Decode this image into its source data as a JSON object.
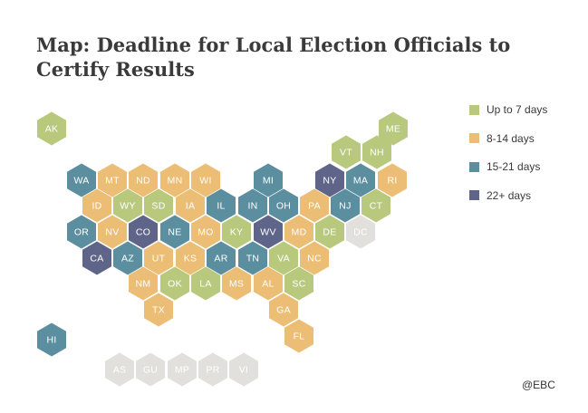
{
  "title": "Map: Deadline for Local Election Officials to Certify Results",
  "colors": {
    "up7": "#b8c97e",
    "d8_14": "#ecbd74",
    "d15_21": "#5b8f9f",
    "d22plus": "#5f6588",
    "na": "#e2e0dc"
  },
  "legend": [
    {
      "key": "up7",
      "label": "Up to 7 days"
    },
    {
      "key": "d8_14",
      "label": "8-14 days"
    },
    {
      "key": "d15_21",
      "label": "15-21 days"
    },
    {
      "key": "d22plus",
      "label": "22+ days"
    }
  ],
  "states": [
    {
      "abbr": "AK",
      "category": "up7"
    },
    {
      "abbr": "ME",
      "category": "up7"
    },
    {
      "abbr": "VT",
      "category": "up7"
    },
    {
      "abbr": "NH",
      "category": "up7"
    },
    {
      "abbr": "WA",
      "category": "d15_21"
    },
    {
      "abbr": "MT",
      "category": "d8_14"
    },
    {
      "abbr": "ND",
      "category": "d8_14"
    },
    {
      "abbr": "MN",
      "category": "d8_14"
    },
    {
      "abbr": "WI",
      "category": "d8_14"
    },
    {
      "abbr": "MI",
      "category": "d15_21"
    },
    {
      "abbr": "NY",
      "category": "d22plus"
    },
    {
      "abbr": "MA",
      "category": "d15_21"
    },
    {
      "abbr": "RI",
      "category": "d8_14"
    },
    {
      "abbr": "ID",
      "category": "d8_14"
    },
    {
      "abbr": "WY",
      "category": "up7"
    },
    {
      "abbr": "SD",
      "category": "up7"
    },
    {
      "abbr": "IA",
      "category": "d8_14"
    },
    {
      "abbr": "IL",
      "category": "d15_21"
    },
    {
      "abbr": "IN",
      "category": "d15_21"
    },
    {
      "abbr": "OH",
      "category": "d15_21"
    },
    {
      "abbr": "PA",
      "category": "d8_14"
    },
    {
      "abbr": "NJ",
      "category": "d15_21"
    },
    {
      "abbr": "CT",
      "category": "up7"
    },
    {
      "abbr": "OR",
      "category": "d15_21"
    },
    {
      "abbr": "NV",
      "category": "d8_14"
    },
    {
      "abbr": "CO",
      "category": "d22plus"
    },
    {
      "abbr": "NE",
      "category": "d15_21"
    },
    {
      "abbr": "MO",
      "category": "d8_14"
    },
    {
      "abbr": "KY",
      "category": "up7"
    },
    {
      "abbr": "WV",
      "category": "d22plus"
    },
    {
      "abbr": "MD",
      "category": "d8_14"
    },
    {
      "abbr": "DE",
      "category": "up7"
    },
    {
      "abbr": "DC",
      "category": "na"
    },
    {
      "abbr": "CA",
      "category": "d22plus"
    },
    {
      "abbr": "AZ",
      "category": "d15_21"
    },
    {
      "abbr": "UT",
      "category": "d8_14"
    },
    {
      "abbr": "KS",
      "category": "d8_14"
    },
    {
      "abbr": "AR",
      "category": "d15_21"
    },
    {
      "abbr": "TN",
      "category": "d15_21"
    },
    {
      "abbr": "VA",
      "category": "up7"
    },
    {
      "abbr": "NC",
      "category": "d8_14"
    },
    {
      "abbr": "NM",
      "category": "d8_14"
    },
    {
      "abbr": "OK",
      "category": "up7"
    },
    {
      "abbr": "LA",
      "category": "up7"
    },
    {
      "abbr": "MS",
      "category": "d8_14"
    },
    {
      "abbr": "AL",
      "category": "d8_14"
    },
    {
      "abbr": "SC",
      "category": "up7"
    },
    {
      "abbr": "TX",
      "category": "d8_14"
    },
    {
      "abbr": "GA",
      "category": "d8_14"
    },
    {
      "abbr": "FL",
      "category": "d8_14"
    },
    {
      "abbr": "HI",
      "category": "d15_21"
    },
    {
      "abbr": "AS",
      "category": "na"
    },
    {
      "abbr": "GU",
      "category": "na"
    },
    {
      "abbr": "MP",
      "category": "na"
    },
    {
      "abbr": "PR",
      "category": "na"
    },
    {
      "abbr": "VI",
      "category": "na"
    }
  ],
  "watermark": "@EBC"
}
